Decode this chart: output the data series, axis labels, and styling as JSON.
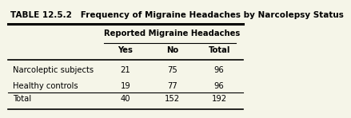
{
  "title": "TABLE 12.5.2   Frequency of Migraine Headaches by Narcolepsy Status",
  "col_group_label": "Reported Migraine Headaches",
  "col_headers": [
    "Yes",
    "No",
    "Total"
  ],
  "row_labels": [
    "Narcoleptic subjects",
    "Healthy controls",
    "Total"
  ],
  "data": [
    [
      "21",
      "75",
      "96"
    ],
    [
      "19",
      "77",
      "96"
    ],
    [
      "40",
      "152",
      "192"
    ]
  ],
  "bg_color": "#f5f5e8",
  "title_fontsize": 7.5,
  "header_fontsize": 7.2,
  "data_fontsize": 7.2
}
